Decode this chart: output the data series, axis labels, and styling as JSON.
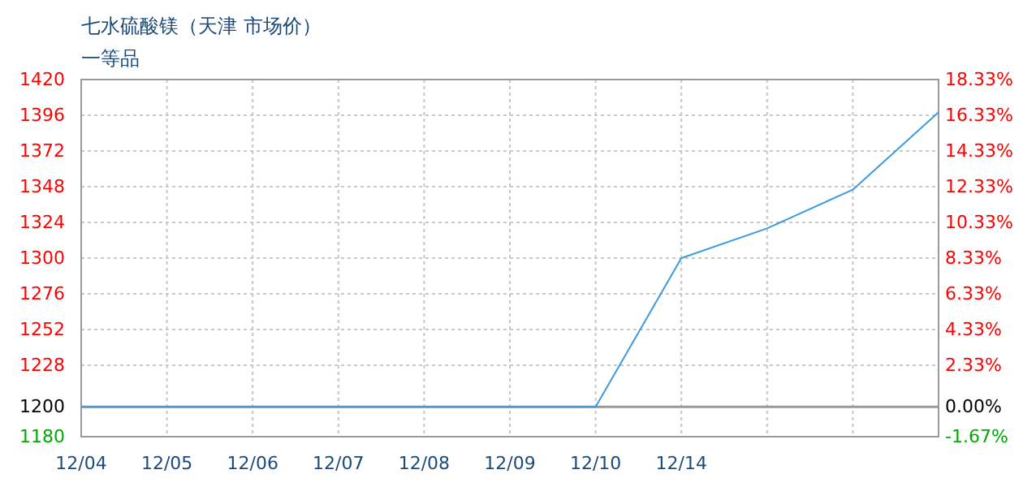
{
  "chart_data": {
    "type": "line",
    "title": "七水硫酸镁（天津 市场价）",
    "subtitle": "一等品",
    "categories": [
      "12/04",
      "12/05",
      "12/06",
      "12/07",
      "12/08",
      "12/09",
      "12/10",
      "12/14",
      null,
      null,
      null
    ],
    "series": [
      {
        "color": "#3d9ae0",
        "values": [
          1200,
          1200,
          1200,
          1200,
          1200,
          1200,
          1200,
          1300,
          1320,
          1346,
          1398
        ]
      }
    ],
    "ylim": [
      1180,
      1420
    ],
    "yticks": [
      1180,
      1200,
      1228,
      1252,
      1276,
      1300,
      1324,
      1348,
      1372,
      1396,
      1420
    ],
    "y2lim": [
      -1.67,
      18.33
    ],
    "y2ticks": [
      {
        "value": -1.67,
        "label": "-1.67%"
      },
      {
        "value": 0,
        "label": "0.00%"
      },
      {
        "value": 2.33,
        "label": "2.33%"
      },
      {
        "value": 4.33,
        "label": "4.33%"
      },
      {
        "value": 6.33,
        "label": "6.33%"
      },
      {
        "value": 8.33,
        "label": "8.33%"
      },
      {
        "value": 10.33,
        "label": "10.33%"
      },
      {
        "value": 12.33,
        "label": "12.33%"
      },
      {
        "value": 14.33,
        "label": "14.33%"
      },
      {
        "value": 16.33,
        "label": "16.33%"
      },
      {
        "value": 18.33,
        "label": "18.33%"
      }
    ],
    "ref_lines": [
      {
        "axis": "y",
        "value": 1200,
        "color": "#999999"
      }
    ],
    "grid": true,
    "marker": "none",
    "line_style": "solid"
  }
}
